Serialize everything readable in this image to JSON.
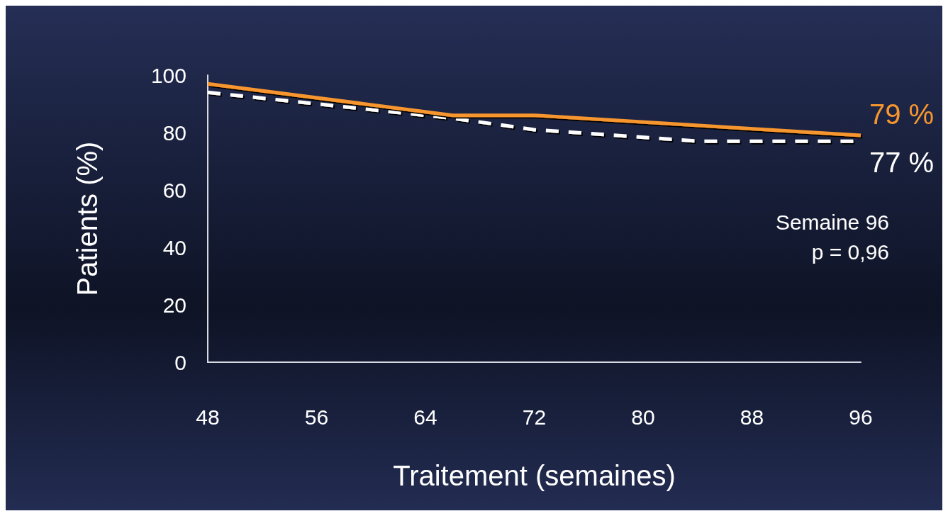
{
  "chart_data": {
    "type": "line",
    "xlabel": "Traitement (semaines)",
    "ylabel": "Patients (%)",
    "xlim": [
      48,
      96
    ],
    "xticks": [
      48,
      56,
      64,
      72,
      80,
      88,
      96
    ],
    "ylim": [
      0,
      100
    ],
    "yticks": [
      0,
      20,
      40,
      60,
      80,
      100
    ],
    "series": [
      {
        "color": "#ffffff",
        "line_style": "dashed",
        "x": [
          48,
          66,
          72,
          84,
          96
        ],
        "values": [
          94,
          85,
          81,
          77,
          77
        ]
      },
      {
        "color": "#f7962e",
        "line_style": "solid",
        "x": [
          48,
          66,
          72,
          96
        ],
        "values": [
          97,
          86,
          86,
          79
        ]
      }
    ],
    "annotations": [
      {
        "text": "77 %",
        "x": 96,
        "y": 77
      },
      {
        "text": "79 %",
        "x": 96,
        "y": 79
      },
      "Semaine 96",
      "p = 0,96"
    ],
    "grid": false,
    "marker": "none"
  }
}
